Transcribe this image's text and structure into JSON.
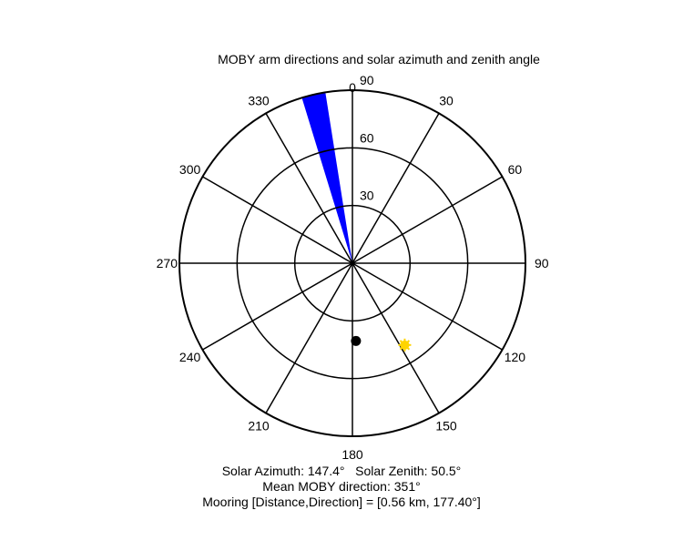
{
  "chart_data": {
    "type": "polar",
    "title": "MOBY arm directions and solar azimuth and zenith angle",
    "theta_direction": "clockwise",
    "theta_zero": "top",
    "angle_ticks": [
      0,
      30,
      60,
      90,
      120,
      150,
      180,
      210,
      240,
      270,
      300,
      330
    ],
    "angle_tick_labels": [
      "0",
      "30",
      "60",
      "90",
      "120",
      "150",
      "180",
      "210",
      "240",
      "270",
      "300",
      "330"
    ],
    "r_ticks": [
      30,
      60,
      90
    ],
    "r_tick_labels": [
      "30",
      "60",
      "90"
    ],
    "rlim": [
      0,
      90
    ],
    "grid": true,
    "series": [
      {
        "kind": "wedge",
        "theta_start": 343,
        "theta_end": 351,
        "r_start": 0,
        "r_end": 90,
        "color": "#0000ff"
      },
      {
        "kind": "point",
        "theta": 177.4,
        "r": 40.5,
        "color": "#000000"
      },
      {
        "kind": "point",
        "theta": 147.4,
        "r": 50.5,
        "color": "#ffd400"
      }
    ]
  },
  "captions": {
    "line1": "Solar Azimuth: 147.4°   Solar Zenith: 50.5°",
    "line2": "Mean MOBY direction: 351°",
    "line3": "Mooring [Distance,Direction] = [0.56 km, 177.40°]"
  }
}
